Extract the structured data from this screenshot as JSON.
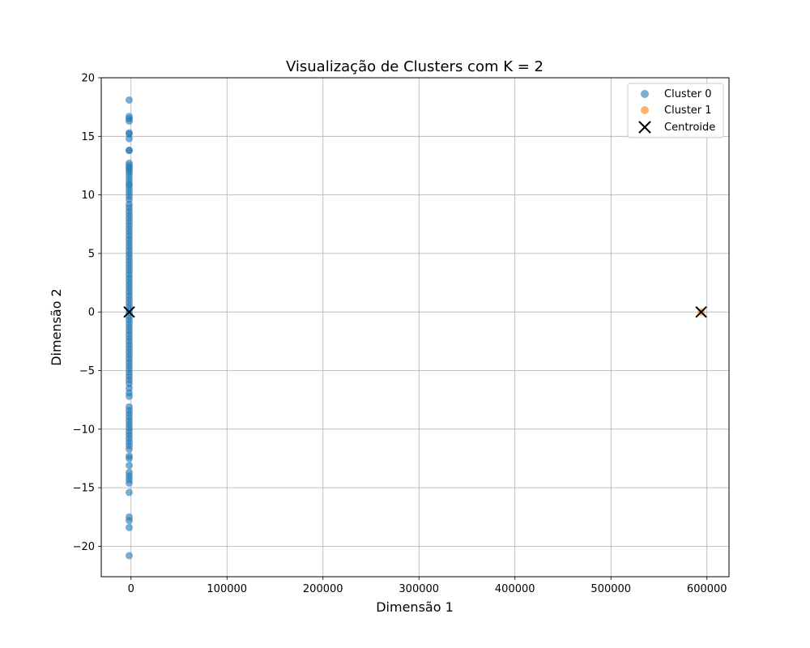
{
  "chart_data": {
    "type": "scatter",
    "title": "Visualização de Clusters com K = 2",
    "xlabel": "Dimensão 1",
    "ylabel": "Dimensão 2",
    "xlim": [
      -31000,
      623000
    ],
    "ylim": [
      -22.6,
      20
    ],
    "xticks": [
      0,
      100000,
      200000,
      300000,
      400000,
      500000,
      600000
    ],
    "yticks": [
      -20,
      -15,
      -10,
      -5,
      0,
      5,
      10,
      15,
      20
    ],
    "xtick_labels": [
      "0",
      "100000",
      "200000",
      "300000",
      "400000",
      "500000",
      "600000"
    ],
    "ytick_labels": [
      "−20",
      "−15",
      "−10",
      "−5",
      "0",
      "5",
      "10",
      "15",
      "20"
    ],
    "grid": true,
    "legend_position": "top-right",
    "series": [
      {
        "name": "Cluster 0",
        "color": "#1f77b4",
        "marker": "circle",
        "x_value": -1900,
        "y": [
          18.1,
          16.7,
          16.5,
          16.3,
          15.3,
          15.2,
          14.8,
          13.8,
          13.8,
          12.7,
          12.5,
          12.3,
          12.1,
          11.9,
          11.6,
          11.3,
          11.0,
          10.8,
          10.5,
          10.2,
          9.9,
          9.6,
          9.2,
          8.9,
          8.6,
          8.3,
          8.0,
          7.7,
          7.4,
          7.1,
          6.8,
          6.5,
          6.2,
          5.9,
          5.6,
          5.3,
          5.0,
          4.7,
          4.4,
          4.1,
          3.8,
          3.5,
          3.2,
          2.9,
          2.6,
          2.3,
          2.0,
          1.7,
          1.4,
          1.1,
          0.8,
          0.5,
          0.2,
          -0.1,
          -0.4,
          -0.7,
          -1.0,
          -1.3,
          -1.6,
          -1.9,
          -2.2,
          -2.5,
          -2.8,
          -3.1,
          -3.4,
          -3.7,
          -4.0,
          -4.3,
          -4.6,
          -4.9,
          -5.2,
          -5.5,
          -5.8,
          -6.1,
          -6.5,
          -6.9,
          -7.2,
          -8.1,
          -8.4,
          -8.7,
          -9.0,
          -9.3,
          -9.6,
          -9.9,
          -10.2,
          -10.5,
          -10.8,
          -11.1,
          -11.4,
          -11.7,
          -12.3,
          -12.5,
          -13.1,
          -13.7,
          -14.0,
          -14.3,
          -14.6,
          -15.4,
          -17.5,
          -17.8,
          -18.4,
          -20.8
        ]
      },
      {
        "name": "Cluster 1",
        "color": "#ff7f0e",
        "marker": "circle",
        "points": [
          [
            594000,
            0
          ]
        ]
      }
    ],
    "centroids": {
      "name": "Centroide",
      "color": "#000000",
      "marker": "x",
      "points": [
        [
          -1900,
          0
        ],
        [
          594000,
          0
        ]
      ]
    }
  }
}
